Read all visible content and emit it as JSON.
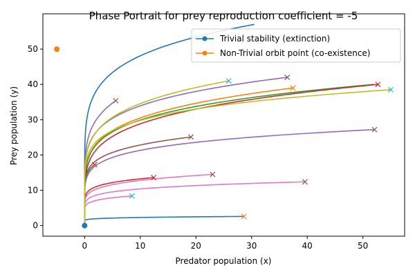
{
  "chart_data": {
    "type": "line",
    "title": "Phase Portrait for prey reproduction coefficient = -5",
    "xlabel": "Predator population (x)",
    "ylabel": "Prey population (y)",
    "xlim": [
      -7.5,
      57.5
    ],
    "ylim": [
      -3,
      60
    ],
    "x_ticks": [
      0,
      10,
      20,
      30,
      40,
      50
    ],
    "y_ticks": [
      0,
      10,
      20,
      30,
      40,
      50
    ],
    "grid": false,
    "legend_position": "top-right",
    "legend": [
      {
        "label": "Trivial stability (extinction)",
        "color": "#1f77b4",
        "marker": "o"
      },
      {
        "label": "Non-Trivial orbit point (co-existence)",
        "color": "#ff7f0e",
        "marker": "o"
      }
    ],
    "points": [
      {
        "x": 0,
        "y": 0,
        "color": "#1f77b4"
      },
      {
        "x": -5,
        "y": 50,
        "color": "#ff7f0e"
      }
    ],
    "trajectories": [
      {
        "start": [
          30.5,
          57
        ],
        "end_y": 6.0,
        "color": "#1f77b4"
      },
      {
        "start": [
          28.6,
          2.6
        ],
        "end_y": 1.0,
        "color": "#1f77b4"
      },
      {
        "start": [
          37.4,
          39
        ],
        "end_y": 5.5,
        "color": "#ff7f0e"
      },
      {
        "start": [
          1.8,
          17.3
        ],
        "end_y": 4.8,
        "color": "#2ca02c"
      },
      {
        "start": [
          52.0,
          40
        ],
        "end_y": 3.6,
        "color": "#2ca02c"
      },
      {
        "start": [
          52.7,
          40.0
        ],
        "end_y": 3.8,
        "color": "#d62728"
      },
      {
        "start": [
          12.4,
          13.6
        ],
        "end_y": 3.9,
        "color": "#d62728"
      },
      {
        "start": [
          36.4,
          42.0
        ],
        "end_y": 6.1,
        "color": "#9467bd"
      },
      {
        "start": [
          5.6,
          35.4
        ],
        "end_y": 7.8,
        "color": "#9467bd"
      },
      {
        "start": [
          52.1,
          27.2
        ],
        "end_y": 3.4,
        "color": "#9467bd"
      },
      {
        "start": [
          19.1,
          25.1
        ],
        "end_y": 6.2,
        "color": "#8c564b"
      },
      {
        "start": [
          23.0,
          14.5
        ],
        "end_y": 4.4,
        "color": "#e377c2"
      },
      {
        "start": [
          39.6,
          12.4
        ],
        "end_y": 2.9,
        "color": "#e377c2"
      },
      {
        "start": [
          8.5,
          8.4
        ],
        "end_y": 3.2,
        "color": "#e377c2"
      },
      {
        "start": [
          25.9,
          41.0
        ],
        "end_y": 7.2,
        "color": "#bcbd22"
      },
      {
        "start": [
          55.0,
          38.5
        ],
        "end_y": 4.2,
        "color": "#bcbd22"
      }
    ],
    "end_markers": [
      {
        "x": 25.9,
        "y": 41.0,
        "color": "#17becf"
      },
      {
        "x": 36.4,
        "y": 42.0,
        "color": "#8c564b"
      },
      {
        "x": 37.4,
        "y": 39.0,
        "color": "#ff7f0e"
      },
      {
        "x": 52.7,
        "y": 40.0,
        "color": "#d62728"
      },
      {
        "x": 55.0,
        "y": 38.5,
        "color": "#17becf"
      },
      {
        "x": 5.6,
        "y": 35.4,
        "color": "#8c564b"
      },
      {
        "x": 19.1,
        "y": 25.1,
        "color": "#8c564b"
      },
      {
        "x": 52.1,
        "y": 27.2,
        "color": "#8c564b"
      },
      {
        "x": 1.8,
        "y": 17.3,
        "color": "#d62728"
      },
      {
        "x": 23.0,
        "y": 14.5,
        "color": "#8c564b"
      },
      {
        "x": 12.4,
        "y": 13.6,
        "color": "#d62728"
      },
      {
        "x": 39.6,
        "y": 12.4,
        "color": "#8c564b"
      },
      {
        "x": 8.5,
        "y": 8.4,
        "color": "#17becf"
      },
      {
        "x": 28.6,
        "y": 2.6,
        "color": "#ff7f0e"
      }
    ]
  }
}
